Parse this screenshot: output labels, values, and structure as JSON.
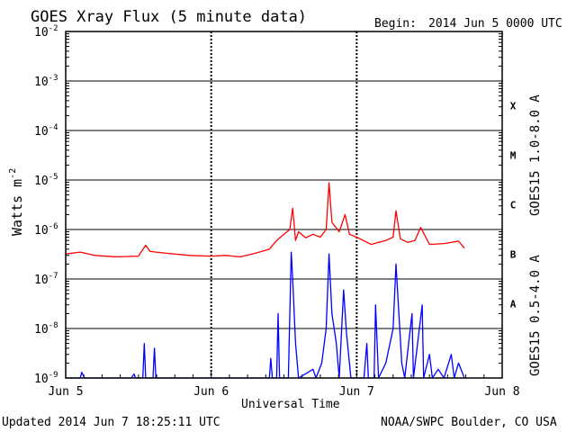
{
  "title": "GOES Xray Flux (5 minute data)",
  "begin_label": "Begin:",
  "begin_value": "2014 Jun 5 0000 UTC",
  "updated": "Updated 2014 Jun  7 18:25:11 UTC",
  "credit": "NOAA/SWPC Boulder, CO USA",
  "colors": {
    "long": "#ff0000",
    "short": "#0000ff",
    "axis": "#000000"
  },
  "chart_data": {
    "type": "line",
    "title": "GOES Xray Flux (5 minute data)",
    "xlabel": "Universal Time",
    "ylabel": "Watts m",
    "ylabel_sup": "-2",
    "y_scale": "log",
    "ylim": [
      1e-09,
      0.01
    ],
    "y_ticks": [
      {
        "base": "10",
        "exp": "-9"
      },
      {
        "base": "10",
        "exp": "-8"
      },
      {
        "base": "10",
        "exp": "-7"
      },
      {
        "base": "10",
        "exp": "-6"
      },
      {
        "base": "10",
        "exp": "-5"
      },
      {
        "base": "10",
        "exp": "-4"
      },
      {
        "base": "10",
        "exp": "-3"
      },
      {
        "base": "10",
        "exp": "-2"
      }
    ],
    "x_ticks": [
      "Jun 5",
      "Jun 6",
      "Jun 7",
      "Jun 8"
    ],
    "xlim_days": [
      0,
      3
    ],
    "flare_classes": [
      {
        "label": "A",
        "level": 1e-08
      },
      {
        "label": "B",
        "level": 1e-07
      },
      {
        "label": "C",
        "level": 1e-06
      },
      {
        "label": "M",
        "level": 1e-05
      },
      {
        "label": "X",
        "level": 0.0001
      }
    ],
    "grid": "horizontal lines at each decade; dotted vertical lines at day boundaries",
    "series": [
      {
        "name": "GOES15 1.0-8.0 A",
        "color": "#ff0000",
        "points": [
          [
            0.0,
            3.2e-07
          ],
          [
            0.1,
            3.5e-07
          ],
          [
            0.2,
            3e-07
          ],
          [
            0.35,
            2.8e-07
          ],
          [
            0.5,
            2.9e-07
          ],
          [
            0.55,
            4.8e-07
          ],
          [
            0.58,
            3.6e-07
          ],
          [
            0.7,
            3.3e-07
          ],
          [
            0.85,
            3e-07
          ],
          [
            1.0,
            2.9e-07
          ],
          [
            1.1,
            3e-07
          ],
          [
            1.2,
            2.8e-07
          ],
          [
            1.3,
            3.3e-07
          ],
          [
            1.4,
            4e-07
          ],
          [
            1.45,
            6e-07
          ],
          [
            1.5,
            8e-07
          ],
          [
            1.54,
            1e-06
          ],
          [
            1.56,
            2.7e-06
          ],
          [
            1.58,
            6e-07
          ],
          [
            1.6,
            9e-07
          ],
          [
            1.65,
            6.8e-07
          ],
          [
            1.7,
            8e-07
          ],
          [
            1.75,
            7e-07
          ],
          [
            1.79,
            1e-06
          ],
          [
            1.81,
            8.8e-06
          ],
          [
            1.83,
            1.4e-06
          ],
          [
            1.88,
            9e-07
          ],
          [
            1.92,
            2e-06
          ],
          [
            1.95,
            8e-07
          ],
          [
            2.0,
            7e-07
          ],
          [
            2.1,
            5e-07
          ],
          [
            2.15,
            5.5e-07
          ],
          [
            2.2,
            6e-07
          ],
          [
            2.25,
            7e-07
          ],
          [
            2.27,
            2.4e-06
          ],
          [
            2.3,
            6.5e-07
          ],
          [
            2.35,
            5.5e-07
          ],
          [
            2.4,
            6e-07
          ],
          [
            2.44,
            1.1e-06
          ],
          [
            2.5,
            5e-07
          ],
          [
            2.6,
            5.2e-07
          ],
          [
            2.7,
            5.8e-07
          ],
          [
            2.74,
            4.2e-07
          ]
        ]
      },
      {
        "name": "GOES15 0.5-4.0 A",
        "color": "#0000ff",
        "points": [
          [
            0.0,
            1e-09
          ],
          [
            0.1,
            1e-09
          ],
          [
            0.11,
            1.3e-09
          ],
          [
            0.13,
            1e-09
          ],
          [
            0.45,
            1e-09
          ],
          [
            0.47,
            1.2e-09
          ],
          [
            0.48,
            1e-09
          ],
          [
            0.53,
            1e-09
          ],
          [
            0.54,
            5e-09
          ],
          [
            0.55,
            1e-09
          ],
          [
            0.6,
            1e-09
          ],
          [
            0.61,
            4e-09
          ],
          [
            0.62,
            1e-09
          ],
          [
            1.0,
            1e-09
          ],
          [
            1.4,
            1e-09
          ],
          [
            1.41,
            2.5e-09
          ],
          [
            1.42,
            1e-09
          ],
          [
            1.45,
            1e-09
          ],
          [
            1.46,
            2e-08
          ],
          [
            1.47,
            1e-09
          ],
          [
            1.53,
            1e-09
          ],
          [
            1.55,
            3.5e-07
          ],
          [
            1.56,
            1e-07
          ],
          [
            1.58,
            5e-09
          ],
          [
            1.6,
            1e-09
          ],
          [
            1.7,
            1.5e-09
          ],
          [
            1.72,
            1e-09
          ],
          [
            1.76,
            2e-09
          ],
          [
            1.79,
            1e-08
          ],
          [
            1.81,
            3.2e-07
          ],
          [
            1.83,
            2e-08
          ],
          [
            1.86,
            5e-09
          ],
          [
            1.88,
            1e-09
          ],
          [
            1.91,
            6e-08
          ],
          [
            1.93,
            8e-09
          ],
          [
            1.96,
            1e-09
          ],
          [
            2.0,
            1e-09
          ],
          [
            2.05,
            1e-09
          ],
          [
            2.07,
            5e-09
          ],
          [
            2.08,
            1e-09
          ],
          [
            2.12,
            1e-09
          ],
          [
            2.13,
            3e-08
          ],
          [
            2.15,
            1e-09
          ],
          [
            2.2,
            2e-09
          ],
          [
            2.25,
            1e-08
          ],
          [
            2.27,
            2e-07
          ],
          [
            2.29,
            2e-08
          ],
          [
            2.31,
            2e-09
          ],
          [
            2.33,
            1e-09
          ],
          [
            2.38,
            2e-08
          ],
          [
            2.39,
            1e-09
          ],
          [
            2.45,
            3e-08
          ],
          [
            2.46,
            1e-09
          ],
          [
            2.5,
            3e-09
          ],
          [
            2.52,
            1e-09
          ],
          [
            2.56,
            1.5e-09
          ],
          [
            2.6,
            1e-09
          ],
          [
            2.65,
            3e-09
          ],
          [
            2.67,
            1e-09
          ],
          [
            2.7,
            2e-09
          ],
          [
            2.74,
            1e-09
          ]
        ]
      }
    ]
  }
}
